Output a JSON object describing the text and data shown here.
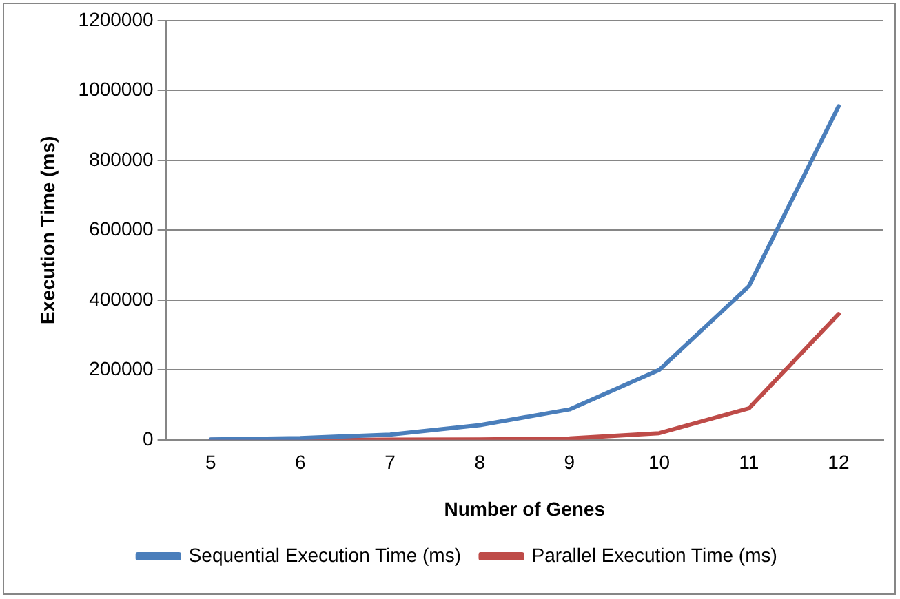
{
  "chart_data": {
    "type": "line",
    "xlabel": "Number of Genes",
    "ylabel": "Execution Time (ms)",
    "categories": [
      "5",
      "6",
      "7",
      "8",
      "9",
      "10",
      "11",
      "12"
    ],
    "series": [
      {
        "name": "Sequential Execution Time (ms)",
        "color": "#4a7ebb",
        "values": [
          1000,
          5000,
          15000,
          42000,
          87000,
          200000,
          440000,
          955000
        ]
      },
      {
        "name": "Parallel Execution Time (ms)",
        "color": "#be4b48",
        "values": [
          0,
          0,
          500,
          1000,
          4000,
          19000,
          90000,
          360000
        ]
      }
    ],
    "ylim": [
      0,
      1200000
    ],
    "yticks": [
      0,
      200000,
      400000,
      600000,
      800000,
      1000000,
      1200000
    ],
    "grid": "y",
    "legend": "bottom",
    "marker": "none"
  }
}
